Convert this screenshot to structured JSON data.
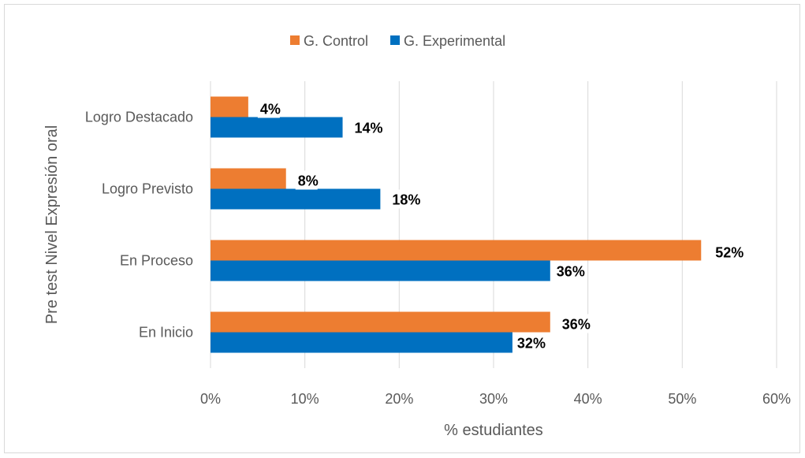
{
  "chart_data": {
    "type": "bar",
    "orientation": "horizontal",
    "categories": [
      "Logro Destacado",
      "Logro Previsto",
      "En Proceso",
      "En Inicio"
    ],
    "series": [
      {
        "name": "G. Control",
        "color": "#ED7D31",
        "values": [
          4,
          8,
          52,
          36
        ],
        "labels": [
          "4%",
          "8%",
          "52%",
          "36%"
        ]
      },
      {
        "name": "G. Experimental",
        "color": "#0070C0",
        "values": [
          14,
          18,
          36,
          32
        ],
        "labels": [
          "14%",
          "18%",
          "36%",
          "32%"
        ]
      }
    ],
    "xlabel": "% estudiantes",
    "ylabel": "Pre test Nivel Expresión oral",
    "xlim": [
      0,
      60
    ],
    "xticks": [
      0,
      10,
      20,
      30,
      40,
      50,
      60
    ],
    "xtick_labels": [
      "0%",
      "10%",
      "20%",
      "30%",
      "40%",
      "50%",
      "60%"
    ],
    "grid": true,
    "legend_position": "top-center"
  }
}
